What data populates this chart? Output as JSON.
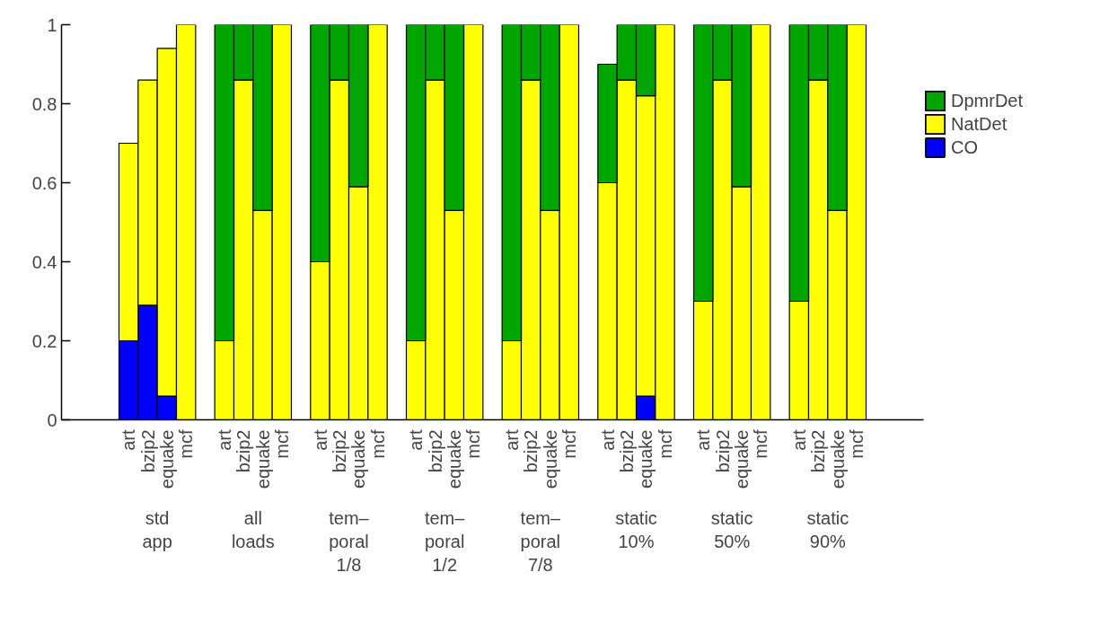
{
  "chart_data": {
    "type": "bar",
    "stacked": true,
    "legend": "right",
    "grid": false,
    "categories": [
      "art",
      "bzip2",
      "equake",
      "mcf",
      null,
      "art",
      "bzip2",
      "equake",
      "mcf",
      null,
      "art",
      "bzip2",
      "equake",
      "mcf",
      null,
      "art",
      "bzip2",
      "equake",
      "mcf",
      null,
      "art",
      "bzip2",
      "equake",
      "mcf",
      null,
      "art",
      "bzip2",
      "equake",
      "mcf",
      null,
      "art",
      "bzip2",
      "equake",
      "mcf",
      null,
      "art",
      "bzip2",
      "equake",
      "mcf"
    ],
    "series": [
      {
        "name": "CO",
        "color": "#0000ff",
        "values": [
          0.2,
          0.29,
          0.06,
          null,
          null,
          null,
          null,
          null,
          null,
          null,
          null,
          null,
          null,
          null,
          null,
          null,
          null,
          null,
          null,
          null,
          null,
          null,
          null,
          null,
          null,
          null,
          null,
          0.06,
          null,
          null,
          null,
          null,
          null,
          null,
          null,
          null,
          null,
          null,
          null
        ]
      },
      {
        "name": "NatDet",
        "color": "#ffff00",
        "values": [
          0.5,
          0.57,
          0.88,
          1,
          null,
          0.2,
          0.86,
          0.53,
          1,
          null,
          0.4,
          0.86,
          0.59,
          1,
          null,
          0.2,
          0.86,
          0.53,
          1,
          null,
          0.2,
          0.86,
          0.53,
          1,
          null,
          0.6,
          0.86,
          0.76,
          1,
          null,
          0.3,
          0.86,
          0.59,
          1,
          null,
          0.3,
          0.86,
          0.53,
          1
        ]
      },
      {
        "name": "DpmrDet",
        "color": "#00a600",
        "values": [
          null,
          null,
          null,
          null,
          null,
          0.8,
          0.14,
          0.47,
          null,
          null,
          0.6,
          0.14,
          0.41,
          null,
          null,
          0.8,
          0.14,
          0.47,
          null,
          null,
          0.8,
          0.14,
          0.47,
          null,
          null,
          0.3,
          0.14,
          0.18,
          null,
          null,
          0.7,
          0.14,
          0.41,
          null,
          null,
          0.7,
          0.14,
          0.47,
          null
        ]
      }
    ],
    "ylim": [
      0,
      1
    ],
    "yticks": [
      0,
      {
        "value": 0.2,
        "label": "0.2"
      },
      {
        "value": 0.4,
        "label": "0.4"
      },
      {
        "value": 0.6,
        "label": "0.6"
      },
      {
        "value": 0.8,
        "label": "0.8"
      },
      1
    ],
    "annotations": [
      "std\napp",
      "all\nloads",
      "tem–\nporal\n1/8",
      "tem–\nporal\n1/2",
      "tem–\nporal\n7/8",
      "static\n10%",
      "static\n50%",
      "static\n90%"
    ]
  }
}
